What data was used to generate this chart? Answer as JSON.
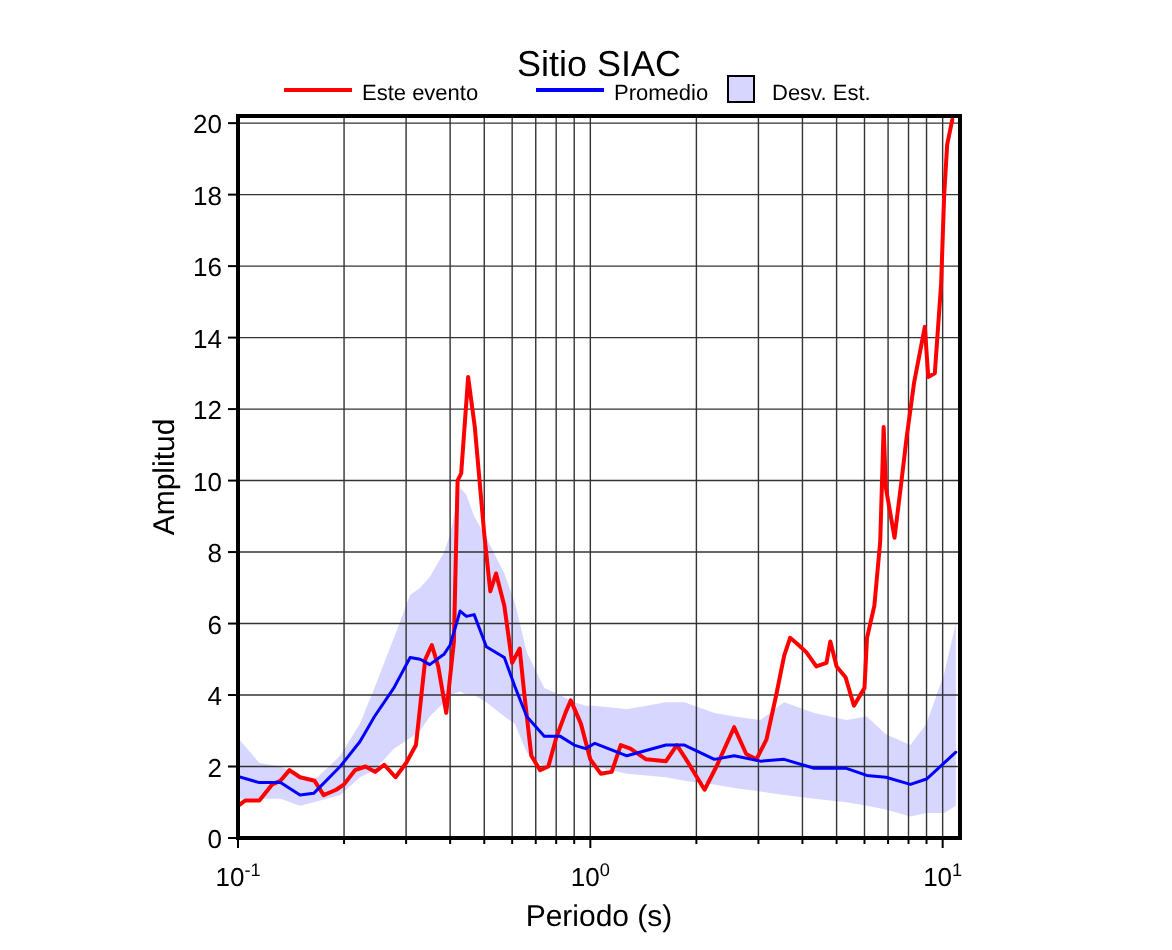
{
  "chart_data": {
    "type": "line",
    "title": "Sitio SIAC",
    "xlabel": "Periodo (s)",
    "ylabel": "Amplitud",
    "log": "x",
    "grid": true,
    "legend": "top",
    "xlim": [
      0.1,
      11.2
    ],
    "ylim": [
      0,
      20.2
    ],
    "xticks": [
      {
        "value": 0.1,
        "label": "10$^{-1}$"
      },
      {
        "value": 0.2,
        "label": null
      },
      {
        "value": 0.3,
        "label": null
      },
      {
        "value": 0.4,
        "label": null
      },
      {
        "value": 0.5,
        "label": null
      },
      {
        "value": 0.6,
        "label": null
      },
      {
        "value": 0.7,
        "label": null
      },
      {
        "value": 0.8,
        "label": null
      },
      {
        "value": 0.9,
        "label": null
      },
      {
        "value": 1,
        "label": "10$^{0}$"
      },
      {
        "value": 2,
        "label": null
      },
      {
        "value": 3,
        "label": null
      },
      {
        "value": 4,
        "label": null
      },
      {
        "value": 5,
        "label": null
      },
      {
        "value": 6,
        "label": null
      },
      {
        "value": 7,
        "label": null
      },
      {
        "value": 8,
        "label": null
      },
      {
        "value": 9,
        "label": null
      },
      {
        "value": 10,
        "label": "10$^{1}$"
      }
    ],
    "yticks": [
      0,
      2,
      4,
      6,
      8,
      10,
      12,
      14,
      16,
      18,
      20
    ],
    "series": [
      {
        "name": "Este evento",
        "color": "#ff0000",
        "x": [
          0.1,
          0.105,
          0.115,
          0.125,
          0.132,
          0.14,
          0.15,
          0.165,
          0.175,
          0.19,
          0.2,
          0.215,
          0.23,
          0.245,
          0.26,
          0.28,
          0.3,
          0.32,
          0.34,
          0.355,
          0.37,
          0.39,
          0.41,
          0.42,
          0.43,
          0.45,
          0.47,
          0.5,
          0.52,
          0.54,
          0.57,
          0.6,
          0.63,
          0.65,
          0.68,
          0.72,
          0.76,
          0.8,
          0.85,
          0.88,
          0.94,
          1.0,
          1.07,
          1.15,
          1.22,
          1.3,
          1.44,
          1.64,
          1.76,
          1.87,
          2.11,
          2.28,
          2.56,
          2.77,
          2.96,
          3.16,
          3.37,
          3.55,
          3.69,
          3.9,
          4.1,
          4.38,
          4.68,
          4.8,
          5.0,
          5.3,
          5.6,
          6.0,
          6.1,
          6.4,
          6.65,
          6.8,
          6.9,
          7.3,
          7.6,
          7.9,
          8.3,
          8.9,
          9.1,
          9.5,
          9.9,
          10.1,
          10.3,
          10.65
        ],
        "values": [
          0.9,
          1.05,
          1.05,
          1.5,
          1.6,
          1.9,
          1.7,
          1.6,
          1.2,
          1.35,
          1.5,
          1.9,
          2.0,
          1.85,
          2.05,
          1.7,
          2.1,
          2.6,
          5.0,
          5.4,
          4.8,
          3.5,
          5.5,
          10.0,
          10.2,
          12.9,
          11.5,
          8.5,
          6.9,
          7.4,
          6.5,
          4.9,
          5.3,
          4.0,
          2.3,
          1.9,
          2.0,
          2.8,
          3.5,
          3.85,
          3.2,
          2.2,
          1.8,
          1.85,
          2.6,
          2.5,
          2.2,
          2.15,
          2.6,
          2.2,
          1.35,
          2.0,
          3.1,
          2.35,
          2.2,
          2.75,
          4.0,
          5.1,
          5.6,
          5.4,
          5.2,
          4.8,
          4.9,
          5.5,
          4.8,
          4.5,
          3.7,
          4.2,
          5.6,
          6.5,
          8.3,
          11.5,
          9.8,
          8.4,
          9.8,
          11.2,
          12.75,
          14.3,
          12.9,
          13.0,
          15.5,
          18.0,
          19.4,
          20.1
        ]
      },
      {
        "name": "Promedio",
        "color": "#0000ff",
        "x": [
          0.1,
          0.115,
          0.132,
          0.15,
          0.164,
          0.195,
          0.222,
          0.244,
          0.277,
          0.308,
          0.329,
          0.35,
          0.385,
          0.4,
          0.427,
          0.445,
          0.468,
          0.507,
          0.57,
          0.61,
          0.66,
          0.74,
          0.82,
          0.9,
          0.97,
          1.03,
          1.27,
          1.64,
          1.85,
          2.25,
          2.56,
          3.04,
          3.55,
          4.32,
          5.33,
          6.09,
          6.9,
          8.1,
          9.0,
          10.1,
          10.9
        ],
        "values": [
          1.72,
          1.55,
          1.55,
          1.2,
          1.25,
          2.0,
          2.7,
          3.4,
          4.2,
          5.05,
          5.0,
          4.85,
          5.15,
          5.4,
          6.35,
          6.2,
          6.25,
          5.35,
          5.05,
          4.25,
          3.4,
          2.85,
          2.85,
          2.6,
          2.5,
          2.65,
          2.3,
          2.6,
          2.6,
          2.2,
          2.3,
          2.15,
          2.2,
          1.95,
          1.95,
          1.75,
          1.7,
          1.5,
          1.65,
          2.1,
          2.4
        ],
        "lower": [
          1.1,
          1.1,
          1.1,
          0.9,
          1.0,
          1.2,
          1.7,
          1.9,
          2.5,
          2.8,
          3.0,
          3.4,
          3.8,
          4.0,
          4.1,
          4.0,
          4.0,
          3.8,
          3.4,
          3.2,
          2.4,
          2.0,
          2.0,
          2.0,
          2.0,
          2.0,
          1.8,
          1.7,
          1.6,
          1.5,
          1.4,
          1.3,
          1.2,
          1.1,
          1.0,
          0.9,
          0.8,
          0.6,
          0.7,
          0.7,
          0.9
        ],
        "upper": [
          2.8,
          2.1,
          2.0,
          1.75,
          1.6,
          2.3,
          3.2,
          4.2,
          5.6,
          6.8,
          7.0,
          7.3,
          8.0,
          8.5,
          9.8,
          9.6,
          9.0,
          8.4,
          7.4,
          6.6,
          5.2,
          4.2,
          4.0,
          3.8,
          3.7,
          3.7,
          3.6,
          3.8,
          3.8,
          3.5,
          3.4,
          3.3,
          3.8,
          3.5,
          3.3,
          3.4,
          2.9,
          2.6,
          3.2,
          4.6,
          6.0
        ]
      }
    ],
    "annotations": [
      "Desv. Est."
    ]
  }
}
